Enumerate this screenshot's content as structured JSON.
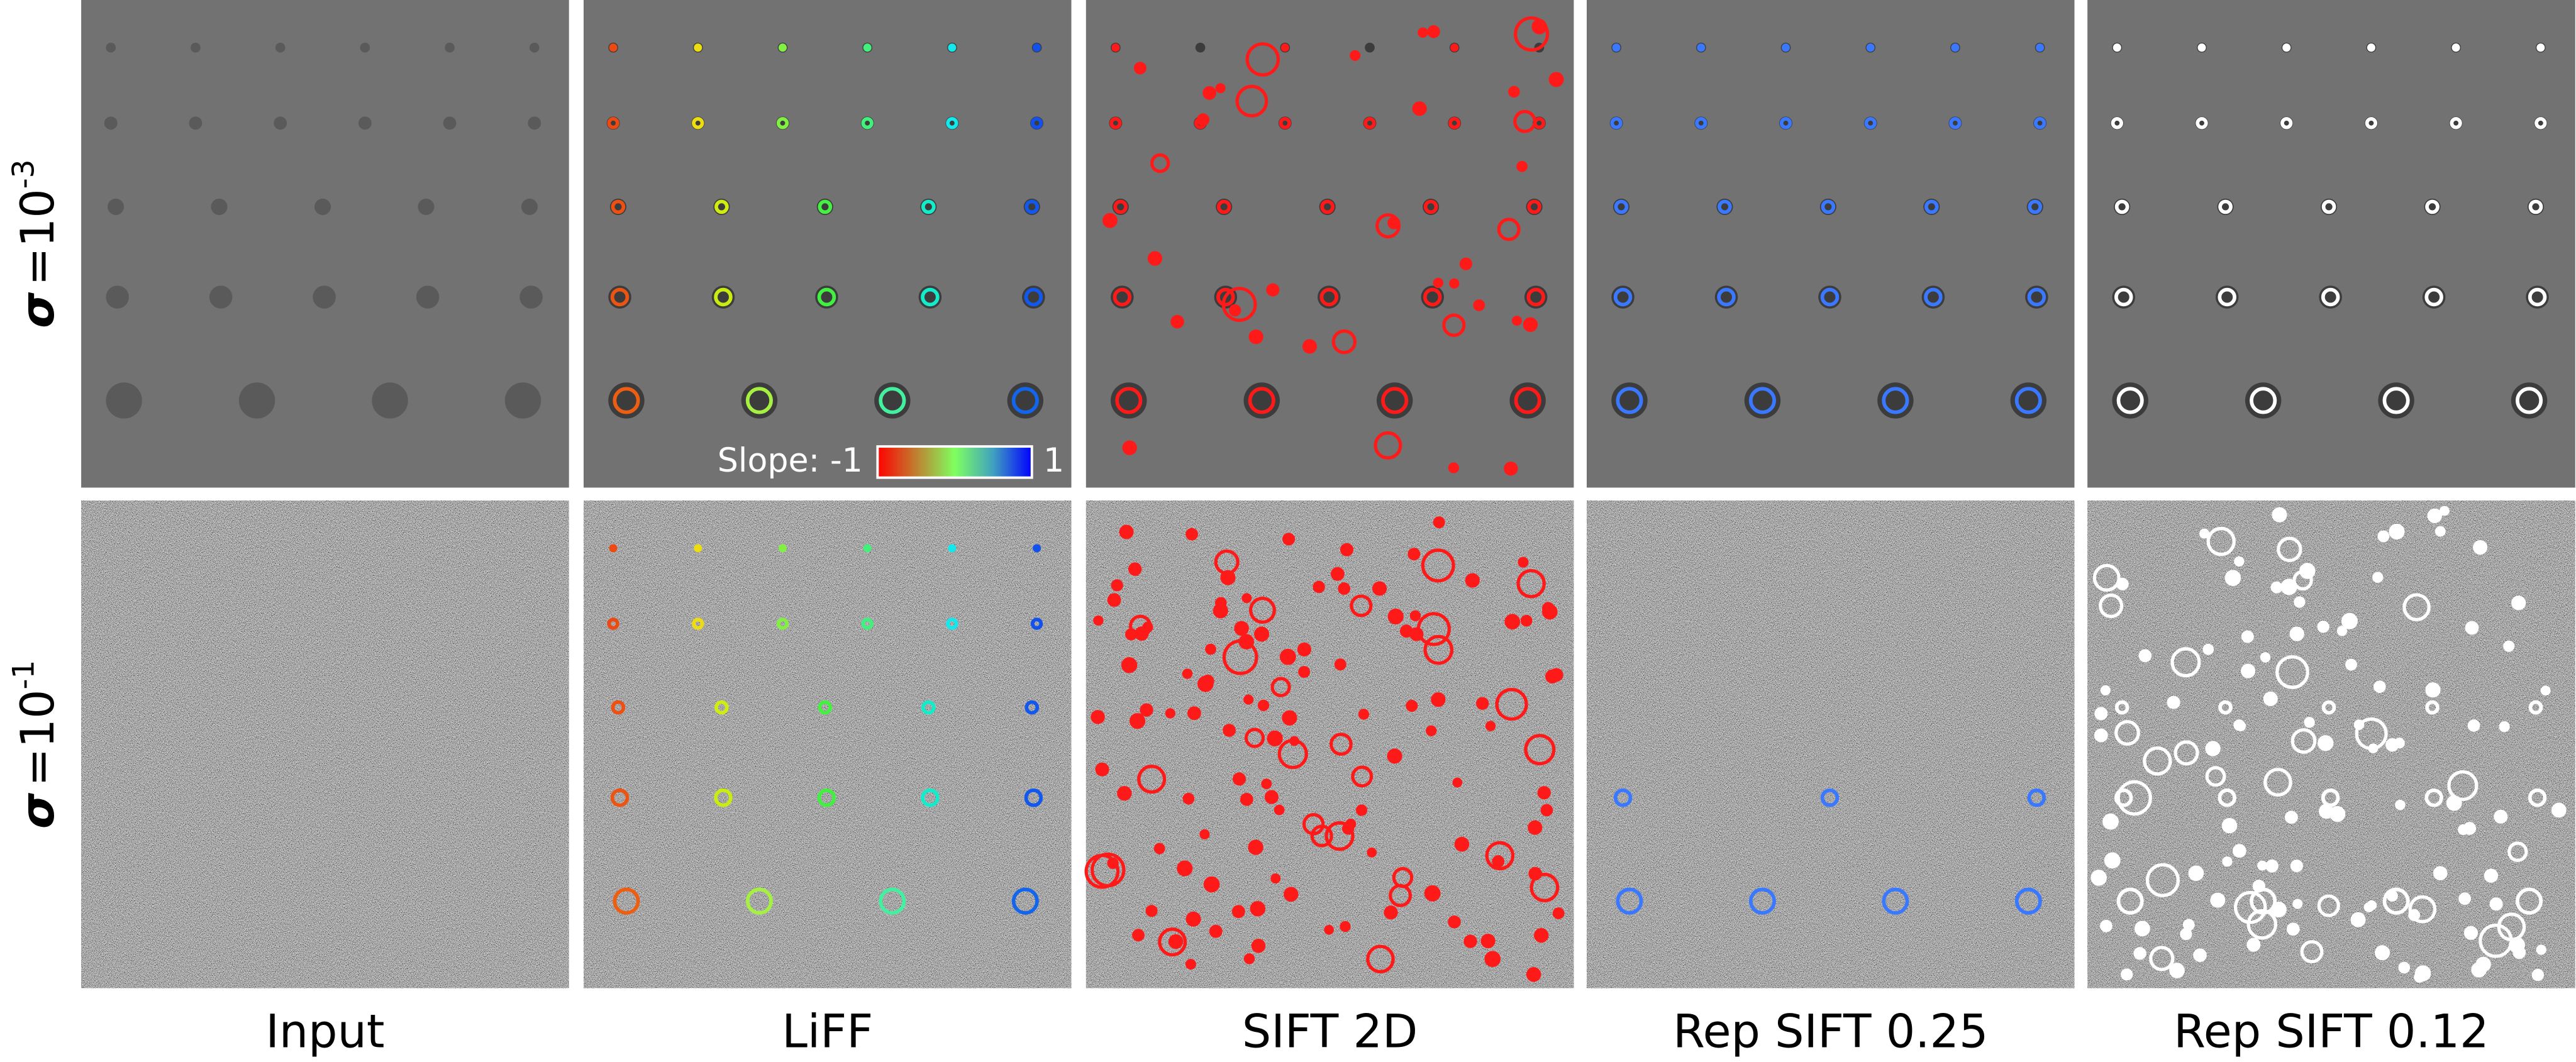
{
  "row_labels": [
    {
      "symbol": "σ",
      "text": "=10",
      "exponent": "-3"
    },
    {
      "symbol": "σ",
      "text": "=10",
      "exponent": "-1"
    }
  ],
  "column_labels": [
    "Input",
    "LiFF",
    "SIFT 2D",
    "Rep SIFT 0.25",
    "Rep SIFT 0.12"
  ],
  "colorbar": {
    "label": "Slope: -1",
    "max_label": "1"
  }
}
